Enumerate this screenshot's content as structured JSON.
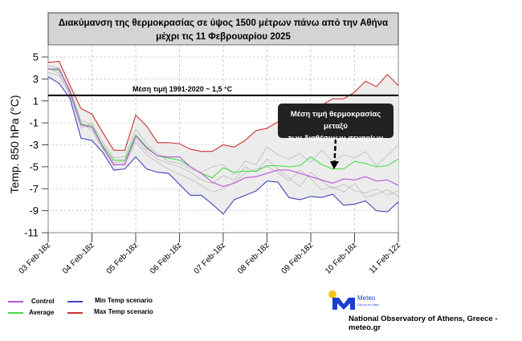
{
  "chart_data": {
    "type": "line",
    "title": [
      "Διακύμανση της θερμοκρασίας σε ύψος 1500 μέτρων πάνω από την Αθήνα",
      "μέχρι τις 11 Φεβρουαρίου 2025"
    ],
    "ylabel": "Temp. 850 hPa (°C)",
    "ylim": [
      -11,
      6
    ],
    "yticks": [
      5,
      3,
      1,
      -1,
      -3,
      -5,
      -7,
      -9,
      -11
    ],
    "xtick_labels": [
      "03 Feb-18z",
      "04 Feb-18z",
      "05 Feb-18z",
      "06 Feb-18z",
      "07 Feb-18z",
      "08 Feb-18z",
      "09 Feb-18z",
      "10 Feb-18z",
      "11 Feb-12z"
    ],
    "grid": true,
    "reference_line": {
      "value": 1.5,
      "label": "Μέση τιμή 1991-2020 ~ 1,5 °C",
      "color": "#000000"
    },
    "annotation": [
      "Μέση τιμή θερμοκρασίας μεταξύ",
      "των διαθέσιμων σεναρίων"
    ],
    "series": [
      {
        "name": "Max Temp scenario",
        "color": "#cc3333",
        "values": [
          4.5,
          4.6,
          2.4,
          0.3,
          -0.2,
          -1.9,
          -3.5,
          -3.5,
          -0.3,
          -1.3,
          -2.8,
          -2.8,
          -2.9,
          -3.4,
          -3.6,
          -3.6,
          -3.0,
          -3.2,
          -2.6,
          -1.7,
          -1.5,
          -0.9,
          -1.3,
          -0.6,
          0.0,
          0.6,
          1.2,
          1.2,
          1.8,
          2.8,
          2.3,
          3.4,
          2.4
        ]
      },
      {
        "name": "Min Temp scenario",
        "color": "#4444bb",
        "values": [
          3.2,
          2.6,
          1.2,
          -2.4,
          -2.6,
          -3.7,
          -5.3,
          -5.2,
          -4.1,
          -5.2,
          -5.5,
          -5.6,
          -6.6,
          -7.6,
          -7.6,
          -8.4,
          -9.3,
          -8.0,
          -7.6,
          -7.2,
          -6.3,
          -6.4,
          -7.8,
          -8.0,
          -7.7,
          -7.8,
          -7.5,
          -8.5,
          -8.4,
          -8.1,
          -9.0,
          -9.1,
          -8.2
        ]
      },
      {
        "name": "Average",
        "color": "#44dd44",
        "values": [
          3.9,
          3.8,
          1.9,
          -1.1,
          -1.3,
          -3.1,
          -4.4,
          -4.4,
          -2.1,
          -3.2,
          -4.0,
          -4.2,
          -4.4,
          -5.0,
          -5.6,
          -6.0,
          -5.1,
          -5.5,
          -5.4,
          -5.4,
          -4.9,
          -4.9,
          -5.0,
          -4.9,
          -4.1,
          -4.8,
          -5.2,
          -5.2,
          -4.5,
          -4.7,
          -5.0,
          -4.9,
          -4.3
        ]
      },
      {
        "name": "Control",
        "color": "#bb55dd",
        "values": [
          3.9,
          3.9,
          1.8,
          -1.2,
          -1.4,
          -3.2,
          -4.8,
          -4.8,
          -2.2,
          -3.3,
          -4.0,
          -4.1,
          -4.1,
          -5.0,
          -5.6,
          -6.4,
          -6.8,
          -6.5,
          -6.0,
          -5.9,
          -5.6,
          -5.3,
          -5.3,
          -5.6,
          -5.9,
          -6.2,
          -6.5,
          -6.1,
          -6.2,
          -5.9,
          -6.3,
          -6.2,
          -6.7
        ]
      }
    ],
    "members_color": "#aaaaaa",
    "members": [
      [
        4.0,
        3.5,
        1.5,
        -1.5,
        -1.0,
        -3.3,
        -4.6,
        -4.5,
        -2.5,
        -3.6,
        -4.3,
        -4.7,
        -5.0,
        -5.5,
        -6.2,
        -6.5,
        -5.8,
        -6.2,
        -5.0,
        -5.5,
        -4.3,
        -5.2,
        -6.0,
        -6.8,
        -5.5,
        -6.3,
        -7.0,
        -6.6,
        -7.2,
        -7.4,
        -7.0,
        -7.6,
        -7.2
      ],
      [
        3.6,
        3.3,
        1.7,
        -1.0,
        -1.7,
        -3.4,
        -4.9,
        -4.7,
        -2.8,
        -3.9,
        -4.6,
        -5.2,
        -5.7,
        -6.1,
        -6.7,
        -7.3,
        -7.0,
        -6.4,
        -5.6,
        -5.2,
        -5.0,
        -5.5,
        -6.3,
        -5.3,
        -6.1,
        -7.1,
        -6.8,
        -7.3,
        -6.5,
        -7.8,
        -7.5,
        -7.1,
        -7.7
      ],
      [
        4.2,
        4.0,
        2.0,
        -0.8,
        -1.1,
        -2.8,
        -4.2,
        -4.1,
        -1.6,
        -2.9,
        -3.8,
        -4.5,
        -4.7,
        -5.2,
        -5.5,
        -5.0,
        -4.8,
        -5.7,
        -4.5,
        -4.8,
        -3.2,
        -3.9,
        -4.3,
        -3.8,
        -4.6,
        -3.5,
        -4.5,
        -3.9,
        -4.2,
        -3.6,
        -4.9,
        -4.0,
        -3.0
      ]
    ]
  },
  "legend": [
    {
      "label": "Control",
      "color": "#bb55dd"
    },
    {
      "label": "Average",
      "color": "#44dd44"
    },
    {
      "label": "Min Temp scenario",
      "color": "#4444bb"
    },
    {
      "label": "Max Temp scenario",
      "color": "#cc3333"
    }
  ],
  "logo": {
    "name": "Meteo",
    "tagline": "Όλα για τον καιρό",
    "sun_color": "#f5c518",
    "brand_color": "#1a3fd1"
  },
  "footer": "National Observatory of Athens, Greece - meteo.gr"
}
